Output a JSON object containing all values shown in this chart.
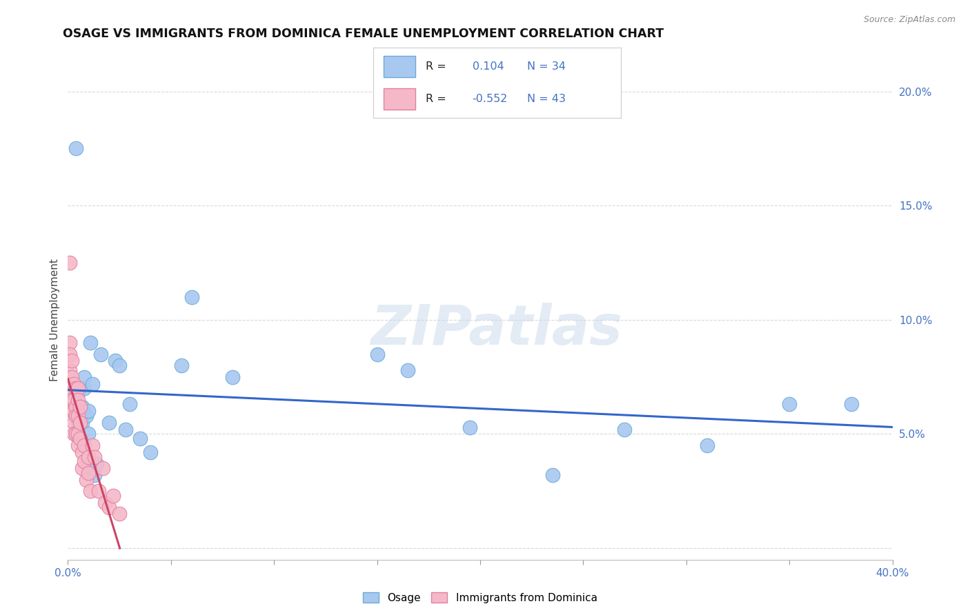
{
  "title": "OSAGE VS IMMIGRANTS FROM DOMINICA FEMALE UNEMPLOYMENT CORRELATION CHART",
  "source": "Source: ZipAtlas.com",
  "ylabel": "Female Unemployment",
  "xlim": [
    0.0,
    0.4
  ],
  "ylim": [
    -0.005,
    0.205
  ],
  "xticks": [
    0.0,
    0.05,
    0.1,
    0.15,
    0.2,
    0.25,
    0.3,
    0.35,
    0.4
  ],
  "yticks_right": [
    0.0,
    0.05,
    0.1,
    0.15,
    0.2
  ],
  "osage_color": "#a8c8f0",
  "osage_edge_color": "#6aaad8",
  "dominica_color": "#f5b8c8",
  "dominica_edge_color": "#e080a0",
  "trend_osage_color": "#3366cc",
  "trend_dominica_color": "#cc4466",
  "R_osage": 0.104,
  "N_osage": 34,
  "R_dominica": -0.552,
  "N_dominica": 43,
  "legend_label_osage": "Osage",
  "legend_label_dominica": "Immigrants from Dominica",
  "osage_points_x": [
    0.004,
    0.005,
    0.005,
    0.006,
    0.007,
    0.007,
    0.008,
    0.008,
    0.009,
    0.01,
    0.01,
    0.011,
    0.012,
    0.013,
    0.014,
    0.016,
    0.02,
    0.023,
    0.025,
    0.028,
    0.03,
    0.035,
    0.04,
    0.055,
    0.06,
    0.08,
    0.15,
    0.165,
    0.195,
    0.235,
    0.27,
    0.31,
    0.35,
    0.38
  ],
  "osage_points_y": [
    0.175,
    0.068,
    0.055,
    0.048,
    0.055,
    0.062,
    0.07,
    0.075,
    0.058,
    0.05,
    0.06,
    0.09,
    0.072,
    0.032,
    0.037,
    0.085,
    0.055,
    0.082,
    0.08,
    0.052,
    0.063,
    0.048,
    0.042,
    0.08,
    0.11,
    0.075,
    0.085,
    0.078,
    0.053,
    0.032,
    0.052,
    0.045,
    0.063,
    0.063
  ],
  "dominica_points_x": [
    0.001,
    0.001,
    0.001,
    0.001,
    0.001,
    0.002,
    0.002,
    0.002,
    0.002,
    0.002,
    0.003,
    0.003,
    0.003,
    0.003,
    0.003,
    0.004,
    0.004,
    0.004,
    0.004,
    0.005,
    0.005,
    0.005,
    0.005,
    0.005,
    0.006,
    0.006,
    0.006,
    0.007,
    0.007,
    0.008,
    0.008,
    0.009,
    0.01,
    0.01,
    0.011,
    0.012,
    0.013,
    0.015,
    0.017,
    0.018,
    0.02,
    0.022,
    0.025
  ],
  "dominica_points_y": [
    0.125,
    0.09,
    0.085,
    0.078,
    0.068,
    0.082,
    0.075,
    0.07,
    0.065,
    0.06,
    0.072,
    0.065,
    0.06,
    0.055,
    0.05,
    0.07,
    0.062,
    0.058,
    0.05,
    0.07,
    0.065,
    0.058,
    0.05,
    0.045,
    0.062,
    0.055,
    0.048,
    0.042,
    0.035,
    0.045,
    0.038,
    0.03,
    0.04,
    0.033,
    0.025,
    0.045,
    0.04,
    0.025,
    0.035,
    0.02,
    0.018,
    0.023,
    0.015
  ],
  "watermark_text": "ZIPatlas",
  "background_color": "#ffffff",
  "grid_color": "#d8d8d8"
}
